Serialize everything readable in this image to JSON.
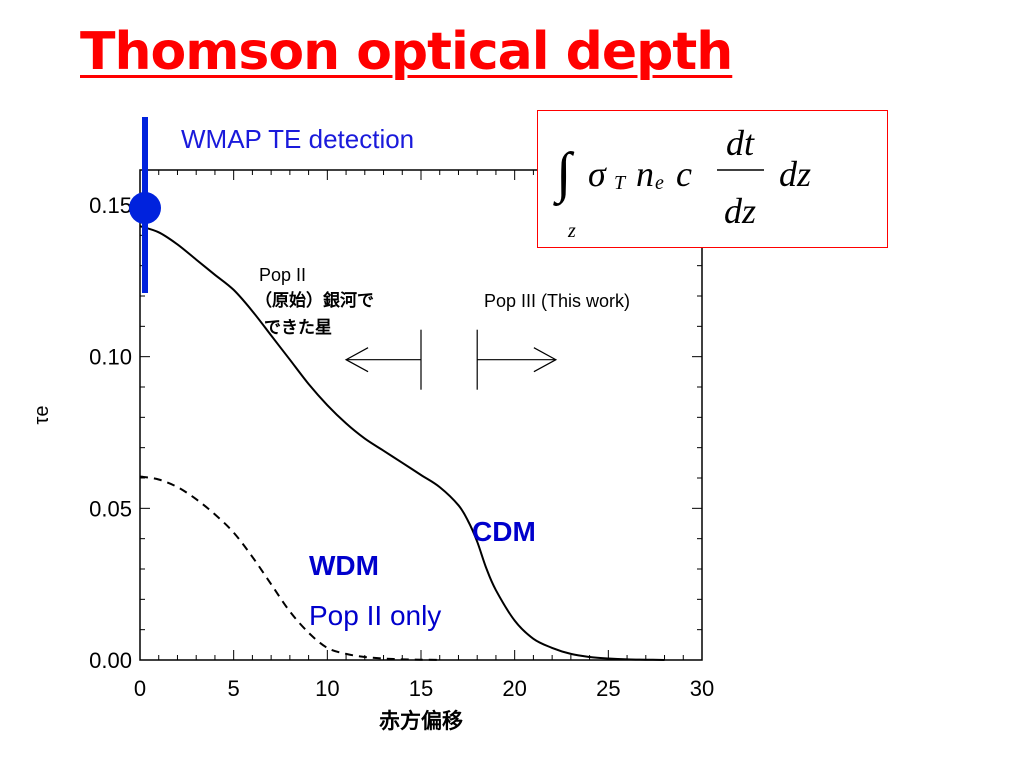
{
  "title": "Thomson optical depth",
  "marker_label": "WMAP TE detection",
  "formula": {
    "integral": "∫",
    "lower_limit": "z",
    "sigma": "σ",
    "sigma_sub": "T",
    "n": "n",
    "n_sub": "e",
    "c": "c",
    "numerator": "dt",
    "denominator": "dz",
    "trailing": "dz"
  },
  "colors": {
    "title": "#ff0000",
    "marker": "#0022dd",
    "annotation": "#0000cc",
    "box_border": "#ff0000"
  },
  "annotations": {
    "pop2_line1": "Pop II",
    "pop2_line2": "（原始）銀河で",
    "pop2_line3": "できた星",
    "pop3": "Pop III (This work)",
    "cdm": "CDM",
    "wdm": "WDM",
    "pop2_only": "Pop II only"
  },
  "chart_data": {
    "type": "line",
    "xlabel": "赤方偏移",
    "ylabel": "τe",
    "xlim": [
      0,
      30
    ],
    "ylim": [
      0,
      0.16
    ],
    "x_ticks": [
      0,
      5,
      10,
      15,
      20,
      25,
      30
    ],
    "x_tick_labels": [
      "0",
      "5",
      "10",
      "15",
      "20",
      "25",
      "30"
    ],
    "y_ticks": [
      0,
      0.05,
      0.1,
      0.15
    ],
    "y_tick_labels": [
      "0.00",
      "0.05",
      "0.10",
      "0.15"
    ],
    "wmap_marker": {
      "x": 0,
      "y_low": 0.121,
      "y_high": 0.179,
      "y": 0.149
    },
    "series": [
      {
        "name": "CDM",
        "style": "solid",
        "points": [
          [
            0,
            0.143
          ],
          [
            1,
            0.141
          ],
          [
            2,
            0.137
          ],
          [
            3,
            0.132
          ],
          [
            4,
            0.127
          ],
          [
            5,
            0.122
          ],
          [
            6,
            0.115
          ],
          [
            7,
            0.107
          ],
          [
            8,
            0.099
          ],
          [
            9,
            0.091
          ],
          [
            10,
            0.084
          ],
          [
            11,
            0.078
          ],
          [
            12,
            0.073
          ],
          [
            13,
            0.069
          ],
          [
            14,
            0.065
          ],
          [
            15,
            0.061
          ],
          [
            16,
            0.057
          ],
          [
            17,
            0.051
          ],
          [
            17.5,
            0.046
          ],
          [
            18,
            0.039
          ],
          [
            18.5,
            0.03
          ],
          [
            19,
            0.023
          ],
          [
            20,
            0.013
          ],
          [
            21,
            0.007
          ],
          [
            22,
            0.004
          ],
          [
            23,
            0.002
          ],
          [
            24,
            0.001
          ],
          [
            25,
            0.0005
          ],
          [
            26,
            0.0002
          ],
          [
            27,
            0.0001
          ],
          [
            28,
            0.0
          ]
        ]
      },
      {
        "name": "WDM",
        "style": "dashed",
        "points": [
          [
            0,
            0.0605
          ],
          [
            1,
            0.0595
          ],
          [
            2,
            0.057
          ],
          [
            3,
            0.053
          ],
          [
            4,
            0.048
          ],
          [
            5,
            0.042
          ],
          [
            6,
            0.034
          ],
          [
            7,
            0.025
          ],
          [
            8,
            0.016
          ],
          [
            9,
            0.009
          ],
          [
            10,
            0.004
          ],
          [
            11,
            0.002
          ],
          [
            12,
            0.001
          ],
          [
            13,
            0.0005
          ],
          [
            14,
            0.0002
          ],
          [
            15,
            0.0001
          ],
          [
            16,
            0.0
          ]
        ]
      }
    ],
    "arrows": [
      {
        "direction": "left",
        "x_from": 15,
        "x_to": 11,
        "y": 0.099
      },
      {
        "direction": "right",
        "x_from": 18,
        "x_to": 22.2,
        "y": 0.099
      }
    ]
  }
}
